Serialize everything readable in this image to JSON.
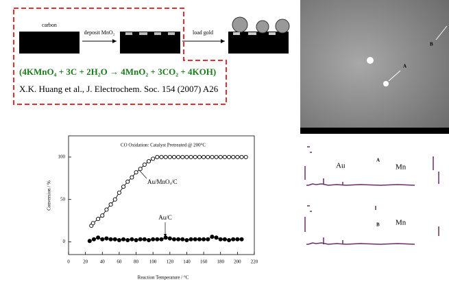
{
  "schematic": {
    "step_1": "carbon",
    "step_2": "deposit MnO₂",
    "step_3": "load gold",
    "equation": "(4KMnO₄ + 3C + 2H₂O → 4MnO₂ + 3CO₂ + 4KOH)",
    "reference": "X.K. Huang et al., J. Electrochem. Soc. 154 (2007) A26"
  },
  "micrograph": {
    "labels": [
      "A",
      "B"
    ]
  },
  "spectra": {
    "panel_a": {
      "labels": [
        "Au",
        "A",
        "Mn"
      ]
    },
    "panel_b": {
      "labels": [
        "B",
        "Mn"
      ]
    }
  },
  "chart_data": {
    "type": "line",
    "title": "CO Oxidation: Catalyst Pretreated @ 200°C",
    "x_label": "Reaction Temperature / °C",
    "y_label": "Conversion / %",
    "annotations": [
      "Au/MnOₓ/C",
      "Au/C"
    ],
    "xlim": [
      0,
      220
    ],
    "xticks": [
      0,
      20,
      40,
      60,
      80,
      100,
      120,
      140,
      160,
      180,
      200,
      220
    ],
    "ylim": [
      -15,
      125
    ],
    "yticks": [
      0,
      50,
      100
    ],
    "series": [
      {
        "name": "Au/MnOₓ/C",
        "color": "#000000",
        "marker": "open",
        "x": [
          27,
          29,
          35,
          40,
          45,
          50,
          55,
          60,
          65,
          70,
          75,
          80,
          85,
          90,
          95,
          100,
          105,
          110,
          115,
          120,
          125,
          130,
          135,
          140,
          145,
          150,
          155,
          160,
          165,
          170,
          175,
          180,
          185,
          190,
          195,
          200,
          205,
          210
        ],
        "values": [
          19,
          22,
          27,
          31,
          38,
          44,
          50,
          58,
          65,
          71,
          76,
          82,
          86,
          91,
          95,
          98,
          100,
          100,
          100,
          100,
          100,
          100,
          100,
          100,
          100,
          100,
          100,
          100,
          100,
          100,
          100,
          100,
          100,
          100,
          100,
          100,
          100,
          100
        ]
      },
      {
        "name": "Au/C",
        "color": "#000000",
        "marker": "filled",
        "x": [
          25,
          30,
          35,
          40,
          45,
          50,
          55,
          60,
          65,
          70,
          75,
          80,
          85,
          90,
          95,
          100,
          105,
          110,
          115,
          120,
          125,
          130,
          135,
          140,
          145,
          150,
          155,
          160,
          165,
          170,
          175,
          180,
          185,
          190,
          195,
          200,
          205
        ],
        "values": [
          1,
          3,
          5,
          3,
          4,
          3,
          3,
          2,
          3,
          2,
          3,
          2,
          3,
          3,
          2,
          3,
          3,
          3,
          5,
          4,
          3,
          3,
          3,
          2,
          3,
          3,
          3,
          3,
          3,
          6,
          5,
          3,
          3,
          2,
          3,
          3,
          3
        ]
      }
    ]
  }
}
